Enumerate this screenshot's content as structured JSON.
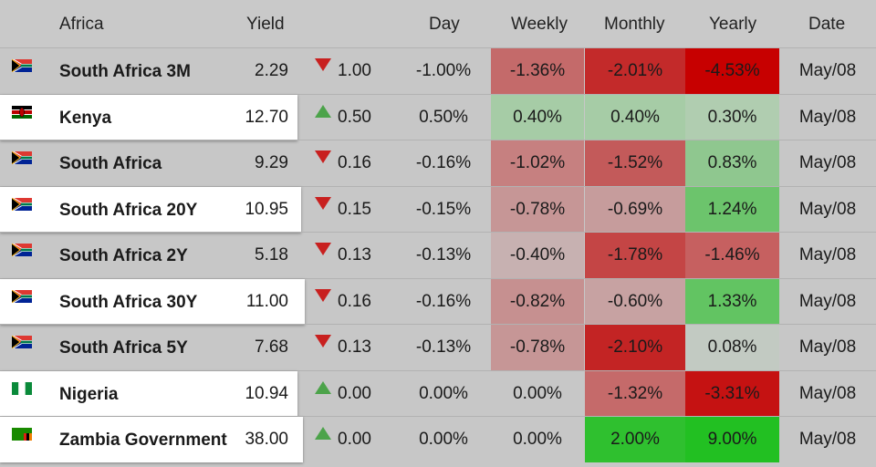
{
  "header": {
    "region": "Africa",
    "yield": "Yield",
    "day": "Day",
    "weekly": "Weekly",
    "monthly": "Monthly",
    "yearly": "Yearly",
    "date": "Date"
  },
  "colors": {
    "down_arrow": "#c8201f",
    "up_arrow": "#4ca34a"
  },
  "rows": [
    {
      "name": "South Africa 3M",
      "flag": "south-africa",
      "highlight": false,
      "yield": "2.29",
      "dir": "down",
      "change": "1.00",
      "day": "-1.00%",
      "weekly": "-1.36%",
      "weekly_bg": "#c46a6a",
      "monthly": "-2.01%",
      "monthly_bg": "#c32a2a",
      "yearly": "-4.53%",
      "yearly_bg": "#c70000",
      "date": "May/08"
    },
    {
      "name": "Kenya",
      "flag": "kenya",
      "highlight": true,
      "yield": "12.70",
      "dir": "up",
      "change": "0.50",
      "day": "0.50%",
      "weekly": "0.40%",
      "weekly_bg": "#a6cca6",
      "monthly": "0.40%",
      "monthly_bg": "#a6cca6",
      "yearly": "0.30%",
      "yearly_bg": "#b0cdb0",
      "date": "May/08"
    },
    {
      "name": "South Africa",
      "flag": "south-africa",
      "highlight": false,
      "yield": "9.29",
      "dir": "down",
      "change": "0.16",
      "day": "-0.16%",
      "weekly": "-1.02%",
      "weekly_bg": "#c68080",
      "monthly": "-1.52%",
      "monthly_bg": "#c35a5a",
      "yearly": "0.83%",
      "yearly_bg": "#8fc78f",
      "date": "May/08"
    },
    {
      "name": "South Africa 20Y",
      "flag": "south-africa",
      "highlight": true,
      "yield": "10.95",
      "dir": "down",
      "change": "0.15",
      "day": "-0.15%",
      "weekly": "-0.78%",
      "weekly_bg": "#c69696",
      "monthly": "-0.69%",
      "monthly_bg": "#c69c9c",
      "yearly": "1.24%",
      "yearly_bg": "#6cc46c",
      "date": "May/08"
    },
    {
      "name": "South Africa 2Y",
      "flag": "south-africa",
      "highlight": false,
      "yield": "5.18",
      "dir": "down",
      "change": "0.13",
      "day": "-0.13%",
      "weekly": "-0.40%",
      "weekly_bg": "#c7b1b1",
      "monthly": "-1.78%",
      "monthly_bg": "#c44545",
      "yearly": "-1.46%",
      "yearly_bg": "#c66060",
      "date": "May/08"
    },
    {
      "name": "South Africa 30Y",
      "flag": "south-africa",
      "highlight": true,
      "yield": "11.00",
      "dir": "down",
      "change": "0.16",
      "day": "-0.16%",
      "weekly": "-0.82%",
      "weekly_bg": "#c69090",
      "monthly": "-0.60%",
      "monthly_bg": "#c7a2a2",
      "yearly": "1.33%",
      "yearly_bg": "#62c462",
      "date": "May/08"
    },
    {
      "name": "South Africa 5Y",
      "flag": "south-africa",
      "highlight": false,
      "yield": "7.68",
      "dir": "down",
      "change": "0.13",
      "day": "-0.13%",
      "weekly": "-0.78%",
      "weekly_bg": "#c69696",
      "monthly": "-2.10%",
      "monthly_bg": "#c32424",
      "yearly": "0.08%",
      "yearly_bg": "#c2cac2",
      "date": "May/08"
    },
    {
      "name": "Nigeria",
      "flag": "nigeria",
      "highlight": true,
      "yield": "10.94",
      "dir": "up",
      "change": "0.00",
      "day": "0.00%",
      "weekly": "0.00%",
      "weekly_bg": "",
      "monthly": "-1.32%",
      "monthly_bg": "#c56a6a",
      "yearly": "-3.31%",
      "yearly_bg": "#c51212",
      "date": "May/08"
    },
    {
      "name": "Zambia Government",
      "flag": "zambia",
      "highlight": true,
      "yield": "38.00",
      "dir": "up",
      "change": "0.00",
      "day": "0.00%",
      "weekly": "0.00%",
      "weekly_bg": "",
      "monthly": "2.00%",
      "monthly_bg": "#2fc02f",
      "yearly": "9.00%",
      "yearly_bg": "#22c022",
      "date": "May/08"
    }
  ]
}
